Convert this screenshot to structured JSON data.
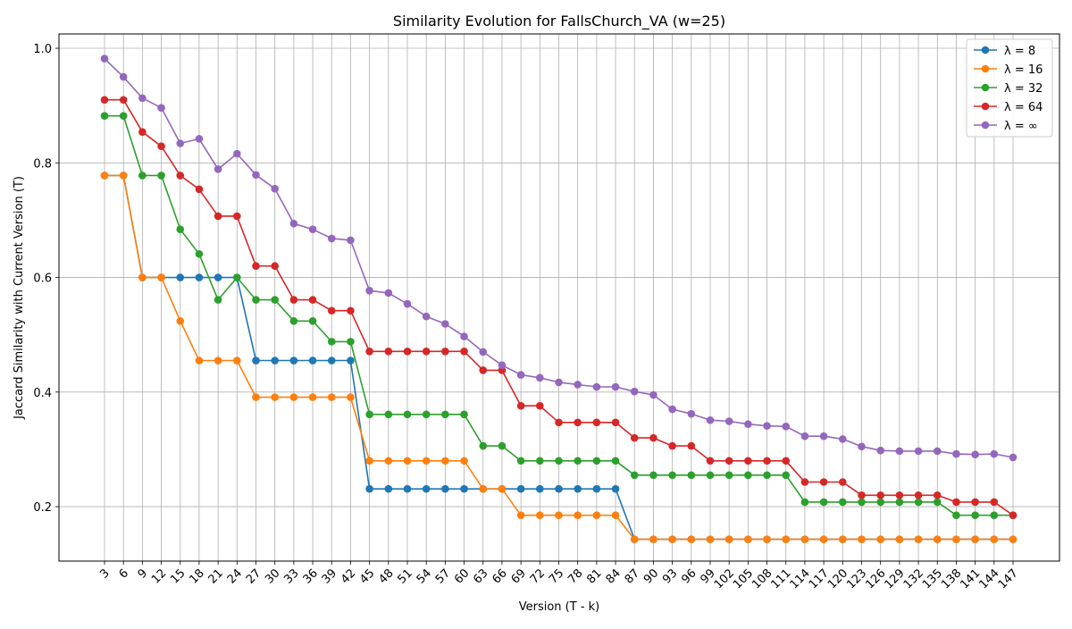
{
  "chart_data": {
    "type": "line",
    "title": "Similarity Evolution for FallsChurch_VA (w=25)",
    "xlabel": "Version (T - k)",
    "ylabel": "Jaccard Similarity with Current Version (T)",
    "x": [
      3,
      6,
      9,
      12,
      15,
      18,
      21,
      24,
      27,
      30,
      33,
      36,
      39,
      42,
      45,
      48,
      51,
      54,
      57,
      60,
      63,
      66,
      69,
      72,
      75,
      78,
      81,
      84,
      87,
      90,
      93,
      96,
      99,
      102,
      105,
      108,
      111,
      114,
      117,
      120,
      123,
      126,
      129,
      132,
      135,
      138,
      141,
      144,
      147
    ],
    "ylim": [
      0.105,
      1.025
    ],
    "yticks": [
      0.2,
      0.4,
      0.6,
      0.8,
      1.0
    ],
    "ytick_labels": [
      "0.2",
      "0.4",
      "0.6",
      "0.8",
      "1.0"
    ],
    "grid": true,
    "legend_position": "top-right",
    "series": [
      {
        "name": "λ = 8",
        "color": "#1f77b4",
        "values": [
          0.778,
          0.778,
          0.6,
          0.6,
          0.6,
          0.6,
          0.6,
          0.6,
          0.455,
          0.455,
          0.455,
          0.455,
          0.455,
          0.455,
          0.231,
          0.231,
          0.231,
          0.231,
          0.231,
          0.231,
          0.231,
          0.231,
          0.231,
          0.231,
          0.231,
          0.231,
          0.231,
          0.231,
          0.143,
          0.143,
          0.143,
          0.143,
          0.143,
          0.143,
          0.143,
          0.143,
          0.143,
          0.143,
          0.143,
          0.143,
          0.143,
          0.143,
          0.143,
          0.143,
          0.143,
          0.143,
          0.143,
          0.143,
          0.143
        ]
      },
      {
        "name": "λ = 16",
        "color": "#ff7f0e",
        "values": [
          0.778,
          0.778,
          0.6,
          0.6,
          0.524,
          0.455,
          0.455,
          0.455,
          0.391,
          0.391,
          0.391,
          0.391,
          0.391,
          0.391,
          0.28,
          0.28,
          0.28,
          0.28,
          0.28,
          0.28,
          0.231,
          0.231,
          0.185,
          0.185,
          0.185,
          0.185,
          0.185,
          0.185,
          0.143,
          0.143,
          0.143,
          0.143,
          0.143,
          0.143,
          0.143,
          0.143,
          0.143,
          0.143,
          0.143,
          0.143,
          0.143,
          0.143,
          0.143,
          0.143,
          0.143,
          0.143,
          0.143,
          0.143,
          0.143
        ]
      },
      {
        "name": "λ = 32",
        "color": "#2ca02c",
        "values": [
          0.882,
          0.882,
          0.778,
          0.778,
          0.684,
          0.641,
          0.561,
          0.6,
          0.561,
          0.561,
          0.524,
          0.524,
          0.488,
          0.488,
          0.361,
          0.361,
          0.361,
          0.361,
          0.361,
          0.361,
          0.306,
          0.306,
          0.28,
          0.28,
          0.28,
          0.28,
          0.28,
          0.28,
          0.255,
          0.255,
          0.255,
          0.255,
          0.255,
          0.255,
          0.255,
          0.255,
          0.255,
          0.208,
          0.208,
          0.208,
          0.208,
          0.208,
          0.208,
          0.208,
          0.208,
          0.185,
          0.185,
          0.185,
          0.185
        ]
      },
      {
        "name": "λ = 64",
        "color": "#d62728",
        "values": [
          0.91,
          0.91,
          0.854,
          0.829,
          0.778,
          0.754,
          0.707,
          0.707,
          0.62,
          0.62,
          0.561,
          0.561,
          0.542,
          0.542,
          0.471,
          0.471,
          0.471,
          0.471,
          0.471,
          0.471,
          0.438,
          0.438,
          0.376,
          0.376,
          0.347,
          0.347,
          0.347,
          0.347,
          0.32,
          0.32,
          0.306,
          0.306,
          0.28,
          0.28,
          0.28,
          0.28,
          0.28,
          0.243,
          0.243,
          0.243,
          0.22,
          0.22,
          0.22,
          0.22,
          0.22,
          0.208,
          0.208,
          0.208,
          0.185
        ]
      },
      {
        "name": "λ = ∞",
        "color": "#9467bd",
        "values": [
          0.982,
          0.95,
          0.913,
          0.896,
          0.834,
          0.842,
          0.789,
          0.816,
          0.779,
          0.755,
          0.694,
          0.684,
          0.668,
          0.665,
          0.577,
          0.573,
          0.554,
          0.532,
          0.519,
          0.497,
          0.47,
          0.447,
          0.43,
          0.425,
          0.417,
          0.413,
          0.409,
          0.409,
          0.401,
          0.395,
          0.37,
          0.362,
          0.351,
          0.349,
          0.344,
          0.341,
          0.34,
          0.323,
          0.323,
          0.318,
          0.305,
          0.298,
          0.297,
          0.297,
          0.297,
          0.292,
          0.291,
          0.292,
          0.286
        ]
      }
    ]
  }
}
